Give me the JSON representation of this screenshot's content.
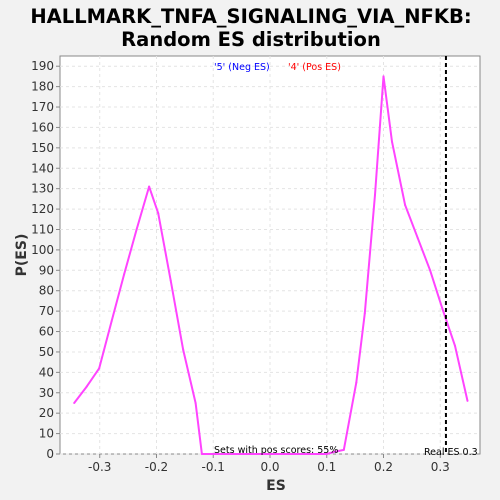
{
  "chart_data": {
    "type": "line",
    "title_line1": "HALLMARK_TNFA_SIGNALING_VIA_NFKB:",
    "title_line2": "Random ES distribution",
    "xlabel": "ES",
    "ylabel": "P(ES)",
    "xlim": [
      -0.37,
      0.37
    ],
    "ylim": [
      0,
      195
    ],
    "x_ticks": [
      -0.3,
      -0.2,
      -0.1,
      0.0,
      0.1,
      0.2,
      0.3
    ],
    "x_tick_labels": [
      "-0.3",
      "-0.2",
      "-0.1",
      "0.0",
      "0.1",
      "0.2",
      "0.3"
    ],
    "y_ticks": [
      0,
      10,
      20,
      30,
      40,
      50,
      60,
      70,
      80,
      90,
      100,
      110,
      120,
      130,
      140,
      150,
      160,
      170,
      180,
      190
    ],
    "grid": true,
    "legend_placement": "top-center",
    "legend": [
      {
        "label": "'5' (Neg ES)",
        "color": "#0000ff"
      },
      {
        "label": "'4' (Pos ES)",
        "color": "#ff0000"
      }
    ],
    "series": [
      {
        "color": "#ff44ff",
        "x": [
          -0.345,
          -0.323,
          -0.301,
          -0.279,
          -0.257,
          -0.235,
          -0.213,
          -0.197,
          -0.175,
          -0.153,
          -0.131,
          -0.12,
          -0.1,
          0.0,
          0.1,
          0.112,
          0.13,
          0.152,
          0.167,
          0.185,
          0.2,
          0.215,
          0.238,
          0.26,
          0.282,
          0.304,
          0.326,
          0.348
        ],
        "y": [
          25,
          33,
          42,
          65,
          88,
          110,
          131,
          118,
          85,
          51,
          25,
          0,
          0,
          0,
          0,
          1,
          2,
          35,
          69,
          127,
          185,
          153,
          122,
          106,
          90,
          71,
          53,
          26
        ]
      }
    ],
    "real_es": 0.31,
    "real_es_label": "Real ES 0.3",
    "annotation": "Sets with pos scores: 55%"
  }
}
